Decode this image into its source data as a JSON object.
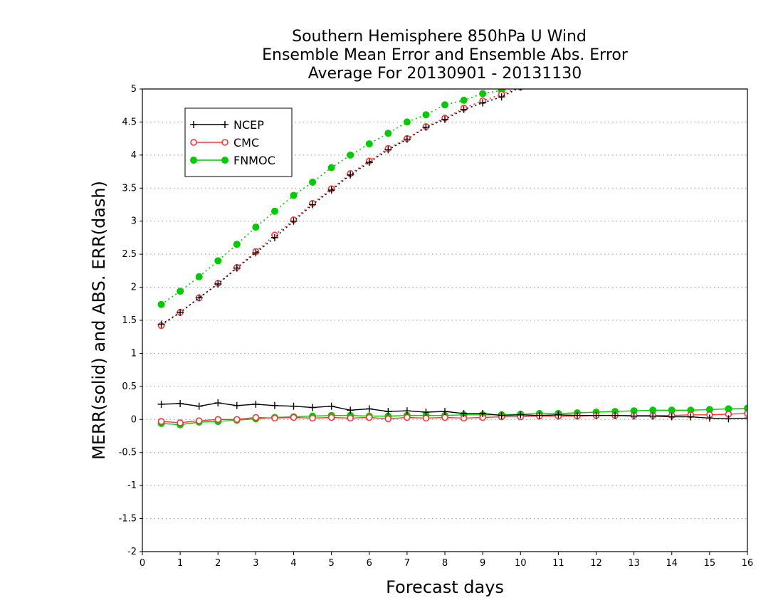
{
  "chart_data": {
    "type": "line",
    "title_lines": [
      "Southern Hemisphere 850hPa U Wind",
      "Ensemble Mean Error and Ensemble Abs. Error",
      "Average For 20130901 - 20131130"
    ],
    "xlabel": "Forecast days",
    "ylabel": "MERR(solid) and ABS. ERR(dash)",
    "xlim": [
      0,
      16
    ],
    "ylim": [
      -2,
      5
    ],
    "x_ticks": [
      "0",
      "1",
      "2",
      "3",
      "4",
      "5",
      "6",
      "7",
      "8",
      "9",
      "10",
      "11",
      "12",
      "13",
      "14",
      "15",
      "16"
    ],
    "y_ticks": [
      "5",
      "4.5",
      "4",
      "3.5",
      "3",
      "2.5",
      "2",
      "1.5",
      "1",
      "0.5",
      "0",
      "-0.5",
      "-1",
      "-1.5",
      "-2"
    ],
    "grid": "horizontal dotted",
    "legend_position": "top-left",
    "legend": [
      "NCEP",
      "CMC",
      "FNMOC"
    ],
    "x": [
      0.5,
      1,
      1.5,
      2,
      2.5,
      3,
      3.5,
      4,
      4.5,
      5,
      5.5,
      6,
      6.5,
      7,
      7.5,
      8,
      8.5,
      9,
      9.5,
      10,
      10.5,
      11,
      11.5,
      12,
      12.5,
      13,
      13.5,
      14,
      14.5,
      15,
      15.5,
      16
    ],
    "series": [
      {
        "name": "NCEP",
        "color": "#000000",
        "marker": "plus",
        "mean_error": [
          0.23,
          0.24,
          0.2,
          0.25,
          0.21,
          0.23,
          0.21,
          0.2,
          0.18,
          0.2,
          0.14,
          0.16,
          0.12,
          0.13,
          0.11,
          0.12,
          0.09,
          0.09,
          0.06,
          0.07,
          0.06,
          0.07,
          0.06,
          0.06,
          0.06,
          0.05,
          0.05,
          0.04,
          0.04,
          0.02,
          0.01,
          0.02
        ],
        "abs_error": [
          1.44,
          1.62,
          1.84,
          2.05,
          2.29,
          2.52,
          2.75,
          3.0,
          3.25,
          3.47,
          3.7,
          3.89,
          4.08,
          4.24,
          4.42,
          4.54,
          4.69,
          4.79,
          4.88,
          5.03,
          null,
          null,
          null,
          null,
          null,
          null,
          null,
          null,
          null,
          null,
          null,
          null
        ]
      },
      {
        "name": "CMC",
        "color": "#ff3333",
        "marker": "open-circle",
        "mean_error": [
          -0.03,
          -0.05,
          -0.02,
          0.0,
          0.0,
          0.03,
          0.02,
          0.03,
          0.02,
          0.03,
          0.02,
          0.03,
          0.01,
          0.03,
          0.02,
          0.03,
          0.02,
          0.03,
          0.04,
          0.04,
          0.05,
          0.05,
          0.05,
          0.06,
          0.06,
          0.06,
          0.06,
          0.06,
          0.07,
          0.07,
          0.08,
          0.09
        ],
        "abs_error": [
          1.42,
          1.62,
          1.84,
          2.06,
          2.3,
          2.54,
          2.79,
          3.02,
          3.27,
          3.49,
          3.72,
          3.91,
          4.1,
          4.25,
          4.43,
          4.56,
          4.71,
          4.82,
          4.92,
          5.03,
          null,
          null,
          null,
          null,
          null,
          null,
          null,
          null,
          null,
          null,
          null,
          null
        ]
      },
      {
        "name": "FNMOC",
        "color": "#00cc00",
        "marker": "filled-circle",
        "mean_error": [
          -0.06,
          -0.08,
          -0.04,
          -0.03,
          -0.01,
          0.01,
          0.03,
          0.04,
          0.05,
          0.06,
          0.06,
          0.05,
          0.05,
          0.06,
          0.06,
          0.06,
          0.07,
          0.07,
          0.07,
          0.08,
          0.09,
          0.09,
          0.1,
          0.11,
          0.12,
          0.13,
          0.14,
          0.14,
          0.14,
          0.15,
          0.16,
          0.17
        ],
        "abs_error": [
          1.74,
          1.94,
          2.16,
          2.4,
          2.65,
          2.91,
          3.15,
          3.39,
          3.59,
          3.81,
          4.0,
          4.17,
          4.33,
          4.5,
          4.61,
          4.76,
          4.83,
          4.93,
          4.98,
          5.03,
          null,
          null,
          null,
          null,
          null,
          null,
          null,
          null,
          null,
          null,
          null,
          null
        ]
      }
    ]
  }
}
